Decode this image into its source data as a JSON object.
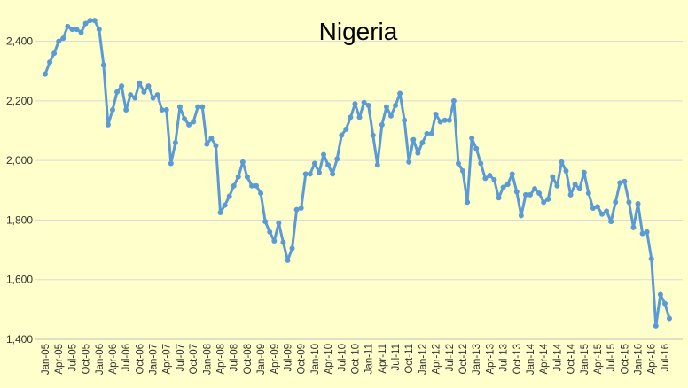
{
  "chart_data": {
    "type": "line",
    "title": "Nigeria",
    "xlabel": "",
    "ylabel": "",
    "ylim": [
      1400,
      2500
    ],
    "yticks": [
      1400,
      1600,
      1800,
      2000,
      2200,
      2400
    ],
    "ytick_labels": [
      "1,400",
      "1,600",
      "1,800",
      "2,000",
      "2,200",
      "2,400"
    ],
    "x_tick_labels": [
      "Jan-05",
      "Apr-05",
      "Jul-05",
      "Oct-05",
      "Jan-06",
      "Apr-06",
      "Jul-06",
      "Oct-06",
      "Jan-07",
      "Apr-07",
      "Jul-07",
      "Oct-07",
      "Jan-08",
      "Apr-08",
      "Jul-08",
      "Oct-08",
      "Jan-09",
      "Apr-09",
      "Jul-09",
      "Oct-09",
      "Jan-10",
      "Apr-10",
      "Jul-10",
      "Oct-10",
      "Jan-11",
      "Apr-11",
      "Jul-11",
      "Oct-11",
      "Jan-12",
      "Apr-12",
      "Jul-12",
      "Oct-12",
      "Jan-13",
      "Apr-13",
      "Jul-13",
      "Oct-13",
      "Jan-14",
      "Apr-14",
      "Jul-14",
      "Oct-14",
      "Jan-15",
      "Apr-15",
      "Jul-15",
      "Oct-15",
      "Jan-16",
      "Apr-16",
      "Jul-16"
    ],
    "grid": true,
    "legend": "none",
    "series_color": "#5b9bd5",
    "grid_color": "#d9d9d9",
    "x_start": "Jan-05",
    "values": [
      2290,
      2330,
      2360,
      2400,
      2410,
      2450,
      2440,
      2440,
      2430,
      2460,
      2470,
      2470,
      2440,
      2320,
      2120,
      2170,
      2230,
      2250,
      2170,
      2220,
      2210,
      2260,
      2230,
      2250,
      2210,
      2220,
      2170,
      2170,
      1990,
      2060,
      2180,
      2140,
      2120,
      2130,
      2180,
      2180,
      2055,
      2075,
      2050,
      1825,
      1850,
      1880,
      1915,
      1945,
      1995,
      1945,
      1915,
      1915,
      1890,
      1795,
      1760,
      1730,
      1790,
      1725,
      1665,
      1705,
      1835,
      1840,
      1955,
      1955,
      1990,
      1960,
      2020,
      1985,
      1955,
      2005,
      2085,
      2105,
      2145,
      2190,
      2145,
      2195,
      2185,
      2085,
      1985,
      2120,
      2180,
      2150,
      2185,
      2225,
      2135,
      1995,
      2070,
      2025,
      2060,
      2090,
      2090,
      2155,
      2130,
      2135,
      2135,
      2200,
      1990,
      1965,
      1860,
      2075,
      2040,
      1990,
      1940,
      1950,
      1935,
      1875,
      1910,
      1920,
      1955,
      1895,
      1815,
      1885,
      1885,
      1905,
      1890,
      1860,
      1870,
      1945,
      1915,
      1995,
      1965,
      1885,
      1920,
      1905,
      1960,
      1890,
      1840,
      1845,
      1820,
      1830,
      1795,
      1860,
      1925,
      1930,
      1860,
      1775,
      1855,
      1755,
      1760,
      1670,
      1445,
      1550,
      1520,
      1470
    ]
  }
}
